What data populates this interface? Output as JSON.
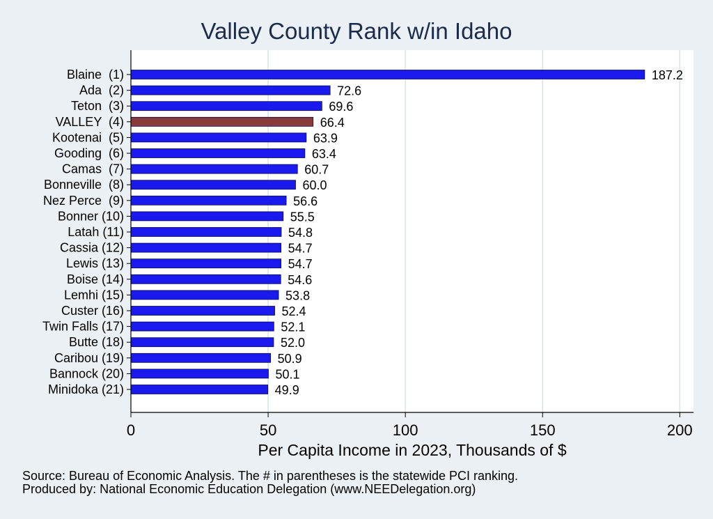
{
  "chart_data": {
    "type": "bar",
    "orientation": "horizontal",
    "title": "Valley County Rank w/in Idaho",
    "xlabel": "Per Capita Income in 2023, Thousands of $",
    "ylabel": "",
    "xlim": [
      0,
      205
    ],
    "xticks": [
      0,
      50,
      100,
      150,
      200
    ],
    "grid": true,
    "categories": [
      "Blaine  (1)",
      "Ada  (2)",
      "Teton  (3)",
      "VALLEY  (4)",
      "Kootenai  (5)",
      "Gooding  (6)",
      "Camas  (7)",
      "Bonneville  (8)",
      "Nez Perce  (9)",
      "Bonner (10)",
      "Latah (11)",
      "Cassia (12)",
      "Lewis (13)",
      "Boise (14)",
      "Lemhi (15)",
      "Custer (16)",
      "Twin Falls (17)",
      "Butte (18)",
      "Caribou (19)",
      "Bannock (20)",
      "Minidoka (21)"
    ],
    "values": [
      187.2,
      72.6,
      69.6,
      66.4,
      63.9,
      63.4,
      60.7,
      60.0,
      56.6,
      55.5,
      54.8,
      54.7,
      54.7,
      54.6,
      53.8,
      52.4,
      52.1,
      52.0,
      50.9,
      50.1,
      49.9
    ],
    "value_labels": [
      "187.2",
      "72.6",
      "69.6",
      "66.4",
      "63.9",
      "63.4",
      "60.7",
      "60.0",
      "56.6",
      "55.5",
      "54.8",
      "54.7",
      "54.7",
      "54.6",
      "53.8",
      "52.4",
      "52.1",
      "52.0",
      "50.9",
      "50.1",
      "49.9"
    ],
    "highlight_index": 3
  },
  "colors": {
    "bar": "#1a1aee",
    "highlight": "#8b3a3a",
    "grid": "#d9e3e8",
    "plot_bg": "#ffffff"
  },
  "notes": {
    "source": "Source: Bureau of Economic Analysis. The # in parentheses is the statewide PCI ranking.",
    "producer": "Produced by: National Economic Education Delegation (www.NEEDelegation.org)"
  }
}
